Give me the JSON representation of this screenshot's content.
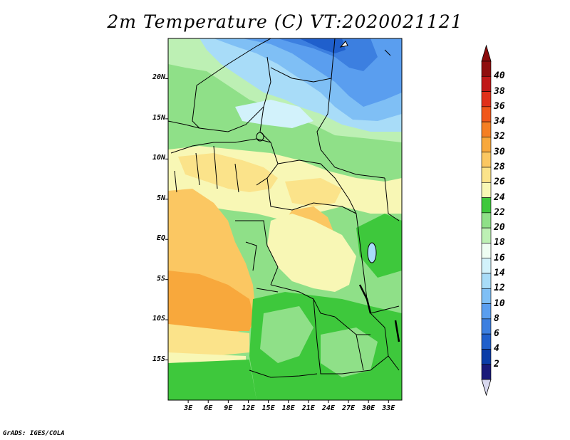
{
  "title": "2m Temperature (C) VT:2020021121",
  "credit": "GrADS: IGES/COLA",
  "map": {
    "lat_labels": [
      "20N",
      "15N",
      "10N",
      "5N",
      "EQ",
      "5S",
      "10S",
      "15S"
    ],
    "lon_labels": [
      "3E",
      "6E",
      "9E",
      "12E",
      "15E",
      "18E",
      "21E",
      "24E",
      "27E",
      "30E",
      "33E"
    ],
    "lat_values": [
      20,
      15,
      10,
      5,
      0,
      -5,
      -10,
      -15
    ],
    "lon_values": [
      3,
      6,
      9,
      12,
      15,
      18,
      21,
      24,
      27,
      30,
      33
    ],
    "extent": {
      "lon": [
        0,
        35
      ],
      "lat": [
        -20,
        25
      ]
    }
  },
  "colorbar": {
    "levels": [
      "2",
      "4",
      "6",
      "8",
      "10",
      "12",
      "14",
      "16",
      "18",
      "20",
      "22",
      "24",
      "26",
      "28",
      "30",
      "32",
      "34",
      "36",
      "38",
      "40"
    ],
    "colors": [
      "#1a1a7a",
      "#0b3da8",
      "#1f5fcc",
      "#3c7fe0",
      "#5a9eef",
      "#7fbff5",
      "#a8dcf8",
      "#d2f2fb",
      "#eefdf2",
      "#bdf0b4",
      "#8fe088",
      "#3ec83c",
      "#f8f7b5",
      "#fbe38a",
      "#fbc762",
      "#f8a83c",
      "#f57f23",
      "#f0571a",
      "#e0301a",
      "#c01818",
      "#8f0d0d"
    ],
    "below_color": "#d8d8ef",
    "above_color": "#8b0b0b"
  }
}
